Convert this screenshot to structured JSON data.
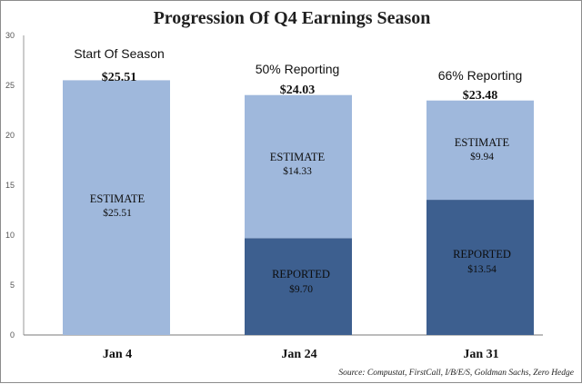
{
  "chart_data": {
    "type": "bar",
    "stacked": true,
    "title": "Progression Of  Q4 Earnings Season",
    "categories": [
      "Jan 4",
      "Jan 24",
      "Jan 31"
    ],
    "headings": [
      "Start Of Season",
      "50% Reporting",
      "66% Reporting"
    ],
    "totals": [
      25.51,
      24.03,
      23.48
    ],
    "total_labels": [
      "$25.51",
      "$24.03",
      "$23.48"
    ],
    "series": [
      {
        "name": "REPORTED",
        "values": [
          0,
          9.7,
          13.54
        ],
        "value_labels": [
          "",
          "$9.70",
          "$13.54"
        ],
        "color": "#3d5f8f"
      },
      {
        "name": "ESTIMATE",
        "values": [
          25.51,
          14.33,
          9.94
        ],
        "value_labels": [
          "$25.51",
          "$14.33",
          "$9.94"
        ],
        "color": "#9fb8dc"
      }
    ],
    "ylim": [
      0,
      30
    ],
    "yticks": [
      "0",
      "5",
      "10",
      "15",
      "20",
      "25",
      "30"
    ],
    "xlabel": "",
    "ylabel": "",
    "grid": false,
    "source": "Source: Compustat,  FirstCall, I/B/E/S, Goldman Sachs, Zero Hedge"
  }
}
